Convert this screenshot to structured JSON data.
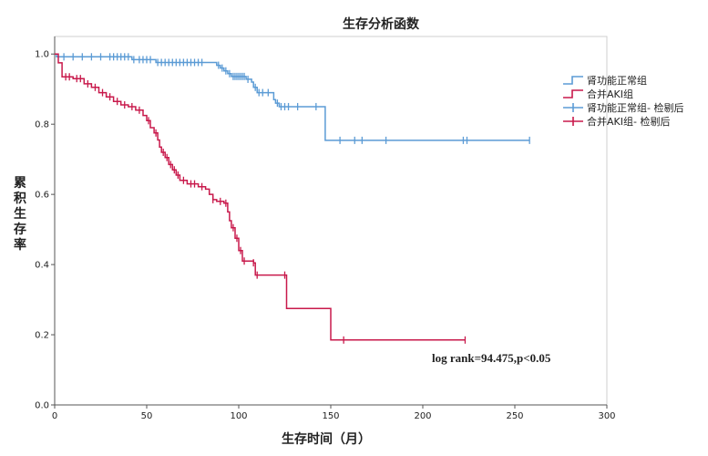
{
  "chart_data": {
    "type": "line",
    "title": "生存分析函数",
    "xlabel": "生存时间（月）",
    "ylabel": "累积生存率",
    "xlim": [
      0,
      300
    ],
    "ylim": [
      0,
      1.05
    ],
    "xticks": [
      "0",
      "50",
      "100",
      "150",
      "200",
      "250",
      "300"
    ],
    "yticks": [
      "0.0",
      "0.2",
      "0.4",
      "0.6",
      "0.8",
      "1.0"
    ],
    "grid": false,
    "legend_position": "right",
    "legend": [
      "肾功能正常组",
      "合并AKI组",
      "肾功能正常组- 检剔后",
      "合并AKI组- 检剔后"
    ],
    "annotation": "log rank=94.475,p<0.05",
    "series": [
      {
        "name": "肾功能正常组",
        "color": "#5b9bd5",
        "steps": [
          [
            0,
            1.0
          ],
          [
            1,
            0.992
          ],
          [
            42,
            0.984
          ],
          [
            55,
            0.976
          ],
          [
            88,
            0.968
          ],
          [
            90,
            0.96
          ],
          [
            92,
            0.952
          ],
          [
            94,
            0.944
          ],
          [
            96,
            0.936
          ],
          [
            104,
            0.928
          ],
          [
            107,
            0.92
          ],
          [
            108,
            0.905
          ],
          [
            110,
            0.89
          ],
          [
            119,
            0.87
          ],
          [
            120,
            0.86
          ],
          [
            122,
            0.85
          ],
          [
            147,
            0.754
          ],
          [
            258,
            0.754
          ]
        ],
        "censored_x": [
          5,
          10,
          15,
          20,
          25,
          30,
          32,
          34,
          36,
          38,
          40,
          43,
          46,
          48,
          50,
          52,
          56,
          58,
          60,
          62,
          64,
          66,
          68,
          70,
          72,
          74,
          76,
          78,
          80,
          89,
          91,
          93,
          95,
          97,
          98,
          99,
          100,
          101,
          102,
          103,
          105,
          109,
          111,
          113,
          116,
          121,
          123,
          125,
          127,
          132,
          142,
          155,
          163,
          167,
          180,
          222,
          224,
          258
        ]
      },
      {
        "name": "合并AKI组",
        "color": "#c8194b",
        "steps": [
          [
            0,
            1.0
          ],
          [
            2,
            0.975
          ],
          [
            4,
            0.935
          ],
          [
            10,
            0.93
          ],
          [
            16,
            0.915
          ],
          [
            20,
            0.905
          ],
          [
            24,
            0.89
          ],
          [
            28,
            0.878
          ],
          [
            32,
            0.865
          ],
          [
            36,
            0.855
          ],
          [
            40,
            0.85
          ],
          [
            44,
            0.84
          ],
          [
            48,
            0.825
          ],
          [
            50,
            0.81
          ],
          [
            52,
            0.79
          ],
          [
            54,
            0.775
          ],
          [
            56,
            0.755
          ],
          [
            57,
            0.735
          ],
          [
            58,
            0.72
          ],
          [
            60,
            0.705
          ],
          [
            62,
            0.685
          ],
          [
            64,
            0.67
          ],
          [
            66,
            0.655
          ],
          [
            68,
            0.64
          ],
          [
            72,
            0.63
          ],
          [
            78,
            0.622
          ],
          [
            82,
            0.615
          ],
          [
            84,
            0.6
          ],
          [
            86,
            0.585
          ],
          [
            88,
            0.58
          ],
          [
            92,
            0.575
          ],
          [
            94,
            0.55
          ],
          [
            95,
            0.525
          ],
          [
            96,
            0.505
          ],
          [
            98,
            0.475
          ],
          [
            100,
            0.44
          ],
          [
            102,
            0.41
          ],
          [
            108,
            0.405
          ],
          [
            109,
            0.37
          ],
          [
            126,
            0.275
          ],
          [
            150,
            0.185
          ],
          [
            223,
            0.185
          ]
        ],
        "censored_x": [
          6,
          8,
          12,
          14,
          18,
          22,
          26,
          30,
          34,
          38,
          42,
          46,
          51,
          55,
          59,
          61,
          63,
          65,
          67,
          70,
          74,
          76,
          80,
          86,
          90,
          93,
          97,
          99,
          101,
          103,
          108,
          110,
          125,
          157,
          223
        ]
      }
    ]
  }
}
